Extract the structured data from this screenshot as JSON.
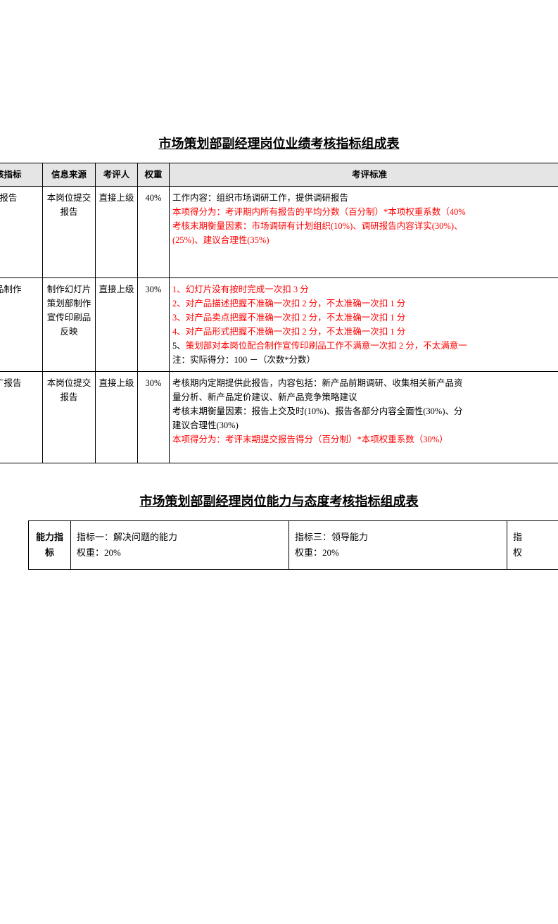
{
  "title1": "市场策划部副经理岗位业绩考核指标组成表",
  "headers": {
    "indicator": "考核指标",
    "source": "信息来源",
    "evaluator": "考评人",
    "weight": "权重",
    "standard": "考评标准"
  },
  "rows": [
    {
      "indicator": "研报告",
      "source": "本岗位提交报告",
      "evaluator": "直接上级",
      "weight": "40%",
      "standard_line1": "工作内容：组织市场调研工作，提供调研报告",
      "standard_red1": "本项得分为：考评期内所有报告的平均分数（百分制）*本项权重系数（40%",
      "standard_red2": "考核末期衡量因素：市场调研有计划组织(10%)、调研报告内容详实(30%)、",
      "standard_red3": "(25%)、建议合理性(35%)"
    },
    {
      "indicator": "传品制作",
      "source": "制作幻灯片\n策划部制作宣传印刷品反映",
      "evaluator": "直接上级",
      "weight": "30%",
      "r1": "1、幻灯片没有按时完成一次扣 3 分",
      "r2": "2、对产品描述把握不准确一次扣 2 分，不太准确一次扣 1 分",
      "r3": "3、对产品卖点把握不准确一次扣 2 分，不太准确一次扣 1 分",
      "r4": "4、对产品形式把握不准确一次扣 2 分，不太准确一次扣 1 分",
      "b5": "5、",
      "r5": "策划部对本岗位配合制作宣传印刷品工作不满意一次扣 2 分，不太满意一",
      "b6": "注：实际得分：100 －（次数*分数）"
    },
    {
      "indicator": "推广报告",
      "source": "本岗位提交报告",
      "evaluator": "直接上级",
      "weight": "30%",
      "b1": "考核期内定期提供此报告，内容包括：新产品前期调研、收集相关新产品资",
      "b2": "量分析、新产品定价建议、新产品竞争策略建议",
      "b3": "考核末期衡量因素：报告上交及时(10%)、报告各部分内容全面性(30%)、分",
      "b4": "建议合理性(30%)",
      "r1": "本项得分为：考评末期提交报告得分（百分制）*本项权重系数（30%）"
    }
  ],
  "title2": "市场策划部副经理岗位能力与态度考核指标组成表",
  "ability_label": "能力指标",
  "ability_ind1_title": "指标一：解决问题的能力",
  "ability_ind1_weight": "权重：20%",
  "ability_ind3_title": "指标三：领导能力",
  "ability_ind3_weight": "权重：20%",
  "ability_partial1": "指",
  "ability_partial2": "权"
}
